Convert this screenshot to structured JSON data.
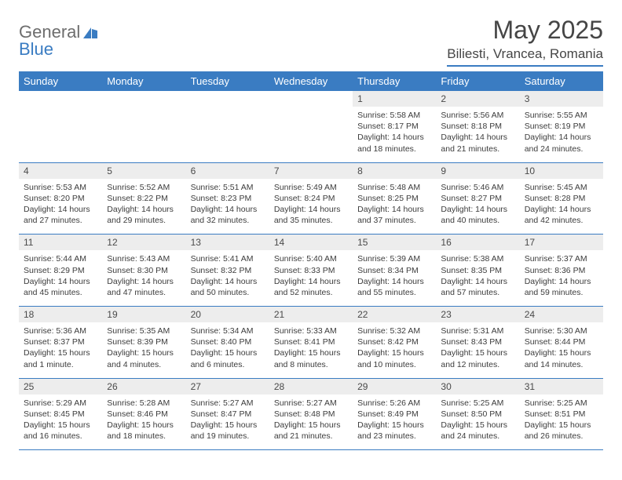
{
  "logo": {
    "general": "General",
    "blue": "Blue"
  },
  "title": "May 2025",
  "location": "Biliesti, Vrancea, Romania",
  "colors": {
    "accent": "#3a7cc2",
    "header_text": "#ffffff",
    "daynum_bg": "#ededed",
    "body_text": "#3c3c3c",
    "title_text": "#454545",
    "logo_gray": "#6d6d6d"
  },
  "weekdays": [
    "Sunday",
    "Monday",
    "Tuesday",
    "Wednesday",
    "Thursday",
    "Friday",
    "Saturday"
  ],
  "weeks": [
    {
      "nums": [
        "",
        "",
        "",
        "",
        "1",
        "2",
        "3"
      ],
      "cells": [
        "",
        "",
        "",
        "",
        "Sunrise: 5:58 AM\nSunset: 8:17 PM\nDaylight: 14 hours and 18 minutes.",
        "Sunrise: 5:56 AM\nSunset: 8:18 PM\nDaylight: 14 hours and 21 minutes.",
        "Sunrise: 5:55 AM\nSunset: 8:19 PM\nDaylight: 14 hours and 24 minutes."
      ]
    },
    {
      "nums": [
        "4",
        "5",
        "6",
        "7",
        "8",
        "9",
        "10"
      ],
      "cells": [
        "Sunrise: 5:53 AM\nSunset: 8:20 PM\nDaylight: 14 hours and 27 minutes.",
        "Sunrise: 5:52 AM\nSunset: 8:22 PM\nDaylight: 14 hours and 29 minutes.",
        "Sunrise: 5:51 AM\nSunset: 8:23 PM\nDaylight: 14 hours and 32 minutes.",
        "Sunrise: 5:49 AM\nSunset: 8:24 PM\nDaylight: 14 hours and 35 minutes.",
        "Sunrise: 5:48 AM\nSunset: 8:25 PM\nDaylight: 14 hours and 37 minutes.",
        "Sunrise: 5:46 AM\nSunset: 8:27 PM\nDaylight: 14 hours and 40 minutes.",
        "Sunrise: 5:45 AM\nSunset: 8:28 PM\nDaylight: 14 hours and 42 minutes."
      ]
    },
    {
      "nums": [
        "11",
        "12",
        "13",
        "14",
        "15",
        "16",
        "17"
      ],
      "cells": [
        "Sunrise: 5:44 AM\nSunset: 8:29 PM\nDaylight: 14 hours and 45 minutes.",
        "Sunrise: 5:43 AM\nSunset: 8:30 PM\nDaylight: 14 hours and 47 minutes.",
        "Sunrise: 5:41 AM\nSunset: 8:32 PM\nDaylight: 14 hours and 50 minutes.",
        "Sunrise: 5:40 AM\nSunset: 8:33 PM\nDaylight: 14 hours and 52 minutes.",
        "Sunrise: 5:39 AM\nSunset: 8:34 PM\nDaylight: 14 hours and 55 minutes.",
        "Sunrise: 5:38 AM\nSunset: 8:35 PM\nDaylight: 14 hours and 57 minutes.",
        "Sunrise: 5:37 AM\nSunset: 8:36 PM\nDaylight: 14 hours and 59 minutes."
      ]
    },
    {
      "nums": [
        "18",
        "19",
        "20",
        "21",
        "22",
        "23",
        "24"
      ],
      "cells": [
        "Sunrise: 5:36 AM\nSunset: 8:37 PM\nDaylight: 15 hours and 1 minute.",
        "Sunrise: 5:35 AM\nSunset: 8:39 PM\nDaylight: 15 hours and 4 minutes.",
        "Sunrise: 5:34 AM\nSunset: 8:40 PM\nDaylight: 15 hours and 6 minutes.",
        "Sunrise: 5:33 AM\nSunset: 8:41 PM\nDaylight: 15 hours and 8 minutes.",
        "Sunrise: 5:32 AM\nSunset: 8:42 PM\nDaylight: 15 hours and 10 minutes.",
        "Sunrise: 5:31 AM\nSunset: 8:43 PM\nDaylight: 15 hours and 12 minutes.",
        "Sunrise: 5:30 AM\nSunset: 8:44 PM\nDaylight: 15 hours and 14 minutes."
      ]
    },
    {
      "nums": [
        "25",
        "26",
        "27",
        "28",
        "29",
        "30",
        "31"
      ],
      "cells": [
        "Sunrise: 5:29 AM\nSunset: 8:45 PM\nDaylight: 15 hours and 16 minutes.",
        "Sunrise: 5:28 AM\nSunset: 8:46 PM\nDaylight: 15 hours and 18 minutes.",
        "Sunrise: 5:27 AM\nSunset: 8:47 PM\nDaylight: 15 hours and 19 minutes.",
        "Sunrise: 5:27 AM\nSunset: 8:48 PM\nDaylight: 15 hours and 21 minutes.",
        "Sunrise: 5:26 AM\nSunset: 8:49 PM\nDaylight: 15 hours and 23 minutes.",
        "Sunrise: 5:25 AM\nSunset: 8:50 PM\nDaylight: 15 hours and 24 minutes.",
        "Sunrise: 5:25 AM\nSunset: 8:51 PM\nDaylight: 15 hours and 26 minutes."
      ]
    }
  ]
}
